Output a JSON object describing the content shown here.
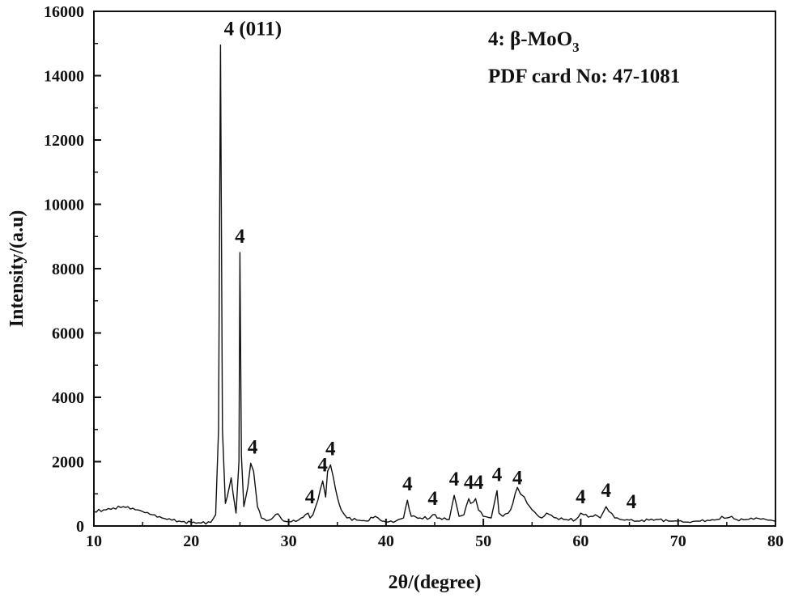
{
  "chart_data": {
    "type": "line",
    "title": "",
    "xlabel": "2θ/(degree)",
    "ylabel": "Intensity/(a.u)",
    "xlim": [
      10,
      80
    ],
    "ylim": [
      0,
      16000
    ],
    "x_ticks": [
      "10",
      "20",
      "30",
      "40",
      "50",
      "60",
      "70",
      "80"
    ],
    "y_ticks": [
      "0",
      "2000",
      "4000",
      "6000",
      "8000",
      "10000",
      "12000",
      "14000",
      "16000"
    ],
    "grid": false,
    "legend": {
      "placement": "top-right",
      "line1_prefix": "4: β-MoO",
      "line1_subscript": "3",
      "line2": "PDF card No: 47-1081"
    },
    "series": [
      {
        "x": [
          10,
          11,
          12,
          13,
          14,
          15,
          16,
          17,
          18,
          19,
          20,
          21,
          22,
          22.5,
          22.8,
          23.0,
          23.2,
          23.5,
          23.9,
          24.1,
          24.3,
          24.6,
          24.9,
          25.0,
          25.15,
          25.4,
          25.8,
          26.1,
          26.4,
          26.8,
          27.2,
          28,
          28.9,
          29.1,
          29.5,
          30,
          31,
          32.0,
          32.2,
          32.5,
          33.0,
          33.5,
          33.8,
          34.0,
          34.3,
          34.6,
          35.0,
          35.4,
          36,
          37,
          38,
          38.9,
          39.2,
          39.6,
          40,
          41,
          41.8,
          42.2,
          42.6,
          43.5,
          44.5,
          44.8,
          45.5,
          46.5,
          47.0,
          47.2,
          47.5,
          48.0,
          48.5,
          48.7,
          49.0,
          49.2,
          49.5,
          50.0,
          50.8,
          51.4,
          51.6,
          52.0,
          52.8,
          53.5,
          53.8,
          54.2,
          54.5,
          55.0,
          55.5,
          56.0,
          56.5,
          57.5,
          58.5,
          59.5,
          60.0,
          60.3,
          61.0,
          61.5,
          62.0,
          62.6,
          62.9,
          63.5,
          64.5,
          65.2,
          65.8,
          67,
          68,
          69,
          70,
          71,
          72,
          73,
          74,
          74.5,
          75,
          75.5,
          76,
          77,
          78,
          79,
          80
        ],
        "y": [
          450,
          500,
          560,
          600,
          550,
          450,
          350,
          250,
          180,
          130,
          100,
          90,
          110,
          350,
          3000,
          14950,
          3000,
          700,
          1200,
          1500,
          1000,
          400,
          2000,
          8500,
          2200,
          600,
          1200,
          1950,
          1700,
          600,
          250,
          180,
          380,
          300,
          150,
          130,
          180,
          400,
          250,
          350,
          800,
          1400,
          900,
          1700,
          1900,
          1500,
          900,
          500,
          250,
          180,
          150,
          300,
          250,
          150,
          120,
          150,
          250,
          800,
          300,
          250,
          250,
          350,
          250,
          200,
          950,
          700,
          300,
          350,
          850,
          700,
          750,
          850,
          500,
          300,
          250,
          1100,
          400,
          300,
          500,
          1200,
          1000,
          900,
          700,
          500,
          350,
          250,
          400,
          250,
          200,
          200,
          400,
          350,
          300,
          350,
          250,
          600,
          450,
          250,
          180,
          200,
          150,
          180,
          200,
          150,
          150,
          120,
          150,
          180,
          200,
          300,
          250,
          300,
          200,
          200,
          250,
          200,
          150
        ]
      }
    ],
    "peak_labels": [
      {
        "x": 23.0,
        "y": 14950,
        "text": "4 (011)"
      },
      {
        "x": 25.0,
        "y": 8500,
        "text": "4"
      },
      {
        "x": 26.3,
        "y": 1950,
        "text": "4"
      },
      {
        "x": 32.2,
        "y": 400,
        "text": "4"
      },
      {
        "x": 33.5,
        "y": 1400,
        "text": "4"
      },
      {
        "x": 34.3,
        "y": 1900,
        "text": "4"
      },
      {
        "x": 42.2,
        "y": 800,
        "text": "4"
      },
      {
        "x": 44.8,
        "y": 350,
        "text": "4"
      },
      {
        "x": 47.0,
        "y": 950,
        "text": "4"
      },
      {
        "x": 48.5,
        "y": 850,
        "text": "4"
      },
      {
        "x": 49.5,
        "y": 850,
        "text": "4"
      },
      {
        "x": 51.4,
        "y": 1100,
        "text": "4"
      },
      {
        "x": 53.5,
        "y": 1000,
        "text": "4"
      },
      {
        "x": 60.0,
        "y": 400,
        "text": "4"
      },
      {
        "x": 62.6,
        "y": 600,
        "text": "4"
      },
      {
        "x": 65.2,
        "y": 250,
        "text": "4"
      }
    ]
  }
}
